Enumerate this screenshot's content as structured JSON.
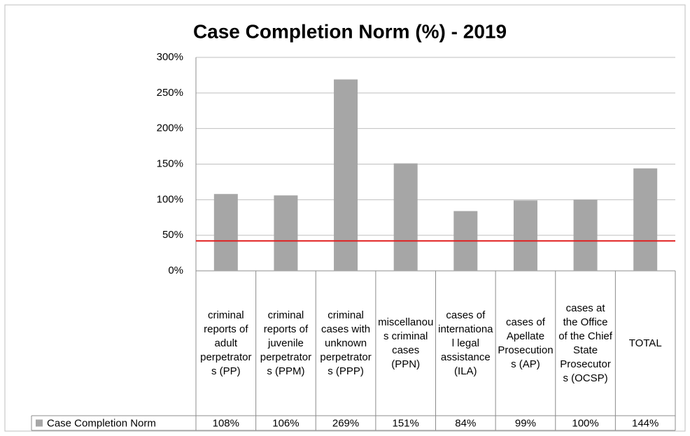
{
  "chart_data": {
    "type": "bar",
    "title": "Case Completion Norm (%) - 2019",
    "categories": [
      "criminal reports of adult perpetrators (PP)",
      "criminal reports of juvenile perpetrators (PPM)",
      "criminal cases with unknown perpetrators (PPP)",
      "miscellanous criminal cases (PPN)",
      "cases of international legal assistance (ILA)",
      "cases of Apellate Prosecutions (AP)",
      "cases at the Office of the Chief State Prosecutors (OCSP)",
      "TOTAL"
    ],
    "series": [
      {
        "name": "Case Completion Norm",
        "color": "#a6a6a6",
        "values": [
          108,
          106,
          269,
          151,
          84,
          99,
          100,
          144
        ],
        "value_labels": [
          "108%",
          "106%",
          "269%",
          "151%",
          "84%",
          "99%",
          "100%",
          "144%"
        ]
      }
    ],
    "ylim": [
      0,
      300
    ],
    "yticks": [
      {
        "value": 0,
        "label": "0%"
      },
      {
        "value": 50,
        "label": "50%"
      },
      {
        "value": 100,
        "label": "100%"
      },
      {
        "value": 150,
        "label": "150%"
      },
      {
        "value": 200,
        "label": "200%"
      },
      {
        "value": 250,
        "label": "250%"
      },
      {
        "value": 300,
        "label": "300%"
      }
    ],
    "grid": true,
    "reference_line": {
      "value": 42,
      "color": "#e02020"
    }
  }
}
